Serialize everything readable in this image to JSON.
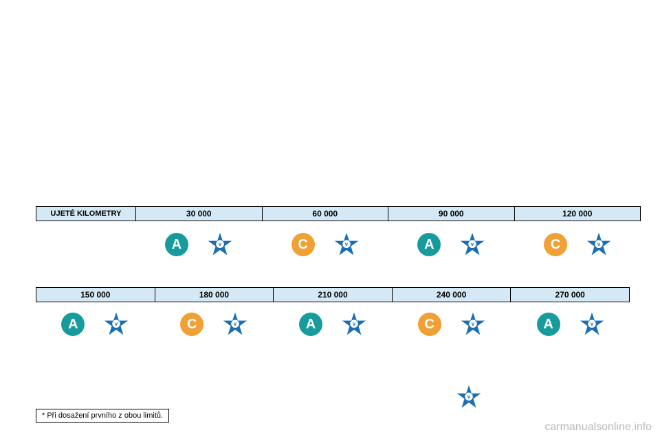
{
  "table1": {
    "header_label": "UJETÉ KILOMETRY",
    "columns": [
      "30 000",
      "60 000",
      "90 000",
      "120 000"
    ],
    "icons": [
      {
        "badge": "A",
        "badge_color": "#189b9d"
      },
      {
        "badge": "C",
        "badge_color": "#f1a035"
      },
      {
        "badge": "A",
        "badge_color": "#189b9d"
      },
      {
        "badge": "C",
        "badge_color": "#f1a035"
      }
    ]
  },
  "table2": {
    "columns": [
      "150 000",
      "180 000",
      "210 000",
      "240 000",
      "270 000"
    ],
    "icons": [
      {
        "badge": "A",
        "badge_color": "#189b9d"
      },
      {
        "badge": "C",
        "badge_color": "#f1a035"
      },
      {
        "badge": "A",
        "badge_color": "#189b9d"
      },
      {
        "badge": "C",
        "badge_color": "#f1a035"
      },
      {
        "badge": "A",
        "badge_color": "#189b9d"
      }
    ]
  },
  "star": {
    "fill": "#1a6fb5",
    "inner_letter": "v",
    "inner_bg": "#ffffff"
  },
  "footnote": "* Při dosažení prvního z obou limitů.",
  "watermark": "carmanualsonline.info",
  "colors": {
    "header_bg": "#d4e8f5",
    "border": "#000000",
    "page_bg": "#ffffff"
  }
}
